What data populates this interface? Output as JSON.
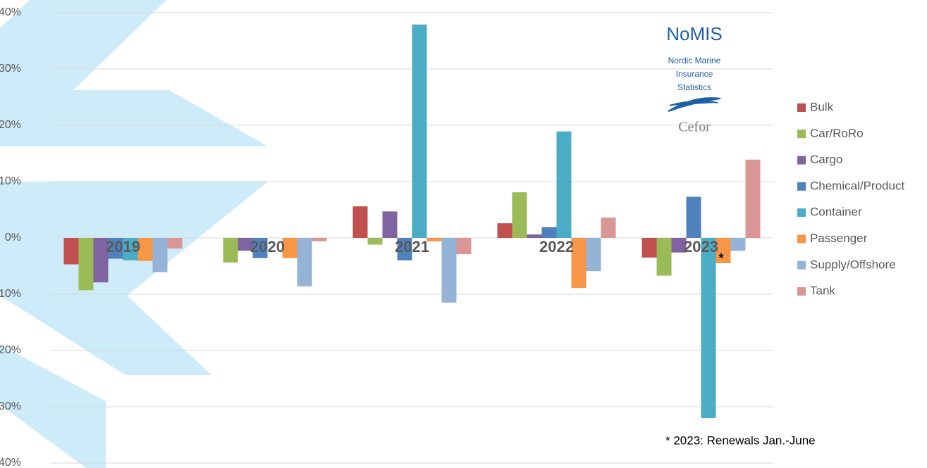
{
  "chart_data": {
    "type": "bar",
    "categories": [
      "2019",
      "2020",
      "2021",
      "2022",
      "2023"
    ],
    "series": [
      {
        "name": "Bulk",
        "color": "#c0504d",
        "values": [
          -4.7,
          0,
          5.6,
          2.6,
          -3.5
        ]
      },
      {
        "name": "Car/RoRo",
        "color": "#9bbb59",
        "values": [
          -9.3,
          -4.4,
          -1.2,
          8.1,
          -6.7
        ]
      },
      {
        "name": "Cargo",
        "color": "#8064a2",
        "values": [
          -7.9,
          -2.3,
          4.7,
          0.6,
          -2.6
        ]
      },
      {
        "name": "Chemical/Product",
        "color": "#4f81bd",
        "values": [
          -3.7,
          -3.6,
          -4.0,
          1.9,
          7.3
        ]
      },
      {
        "name": "Container",
        "color": "#4bacc6",
        "values": [
          -4.0,
          0,
          37.9,
          18.9,
          -32.0
        ]
      },
      {
        "name": "Passenger",
        "color": "#f79646",
        "values": [
          -4.1,
          -3.6,
          -0.6,
          -8.9,
          -4.5
        ]
      },
      {
        "name": "Supply/Offshore",
        "color": "#95b3d7",
        "values": [
          -6.1,
          -8.6,
          -11.5,
          -5.9,
          -2.3
        ]
      },
      {
        "name": "Tank",
        "color": "#d99694",
        "values": [
          -1.9,
          -0.6,
          -2.9,
          3.6,
          13.9
        ]
      }
    ],
    "ylim": [
      -40,
      40
    ],
    "yticks": [
      {
        "value": -40,
        "label": "-40%"
      },
      {
        "value": -30,
        "label": "-30%"
      },
      {
        "value": -20,
        "label": "-20%"
      },
      {
        "value": -10,
        "label": "-10%"
      },
      {
        "value": 0,
        "label": "0%"
      },
      {
        "value": 10,
        "label": "10%"
      },
      {
        "value": 20,
        "label": "20%"
      },
      {
        "value": 30,
        "label": "30%"
      },
      {
        "value": 40,
        "label": "40%"
      }
    ],
    "grid": true,
    "legend": "right",
    "annotations": [
      "*",
      "* 2023: Renewals Jan.-June"
    ],
    "logo": {
      "title": "NoMIS",
      "subtitle": [
        "Nordic Marine",
        "Insurance",
        "Statistics"
      ],
      "brand": "Cefor"
    }
  }
}
